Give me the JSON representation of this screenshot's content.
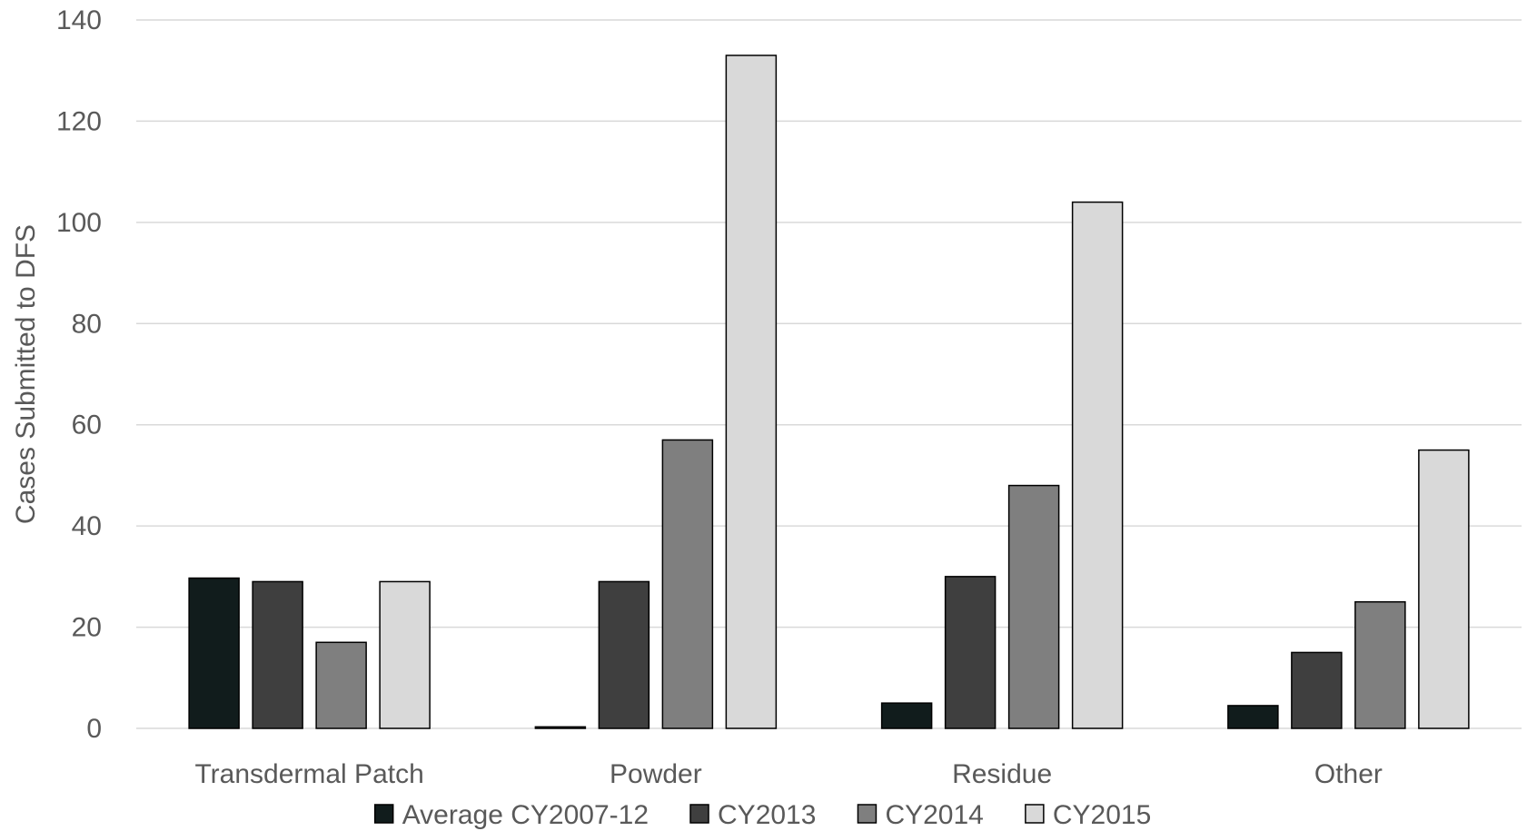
{
  "chart_data": {
    "type": "bar",
    "title": "",
    "xlabel": "",
    "ylabel": "Cases Submitted to DFS",
    "ylim": [
      0,
      140
    ],
    "yticks": [
      0,
      20,
      40,
      60,
      80,
      100,
      120,
      140
    ],
    "grid": true,
    "legend_position": "bottom",
    "categories": [
      "Transdermal Patch",
      "Powder",
      "Residue",
      "Other"
    ],
    "series": [
      {
        "name": "Average CY2007-12",
        "color": "#111c1c",
        "values": [
          29.7,
          0.3,
          5,
          4.5
        ]
      },
      {
        "name": "CY2013",
        "color": "#3f3f3f",
        "values": [
          29,
          29,
          30,
          15
        ]
      },
      {
        "name": "CY2014",
        "color": "#7f7f7f",
        "values": [
          17,
          57,
          48,
          25
        ]
      },
      {
        "name": "CY2015",
        "color": "#d9d9d9",
        "values": [
          29,
          133,
          104,
          55
        ]
      }
    ]
  }
}
